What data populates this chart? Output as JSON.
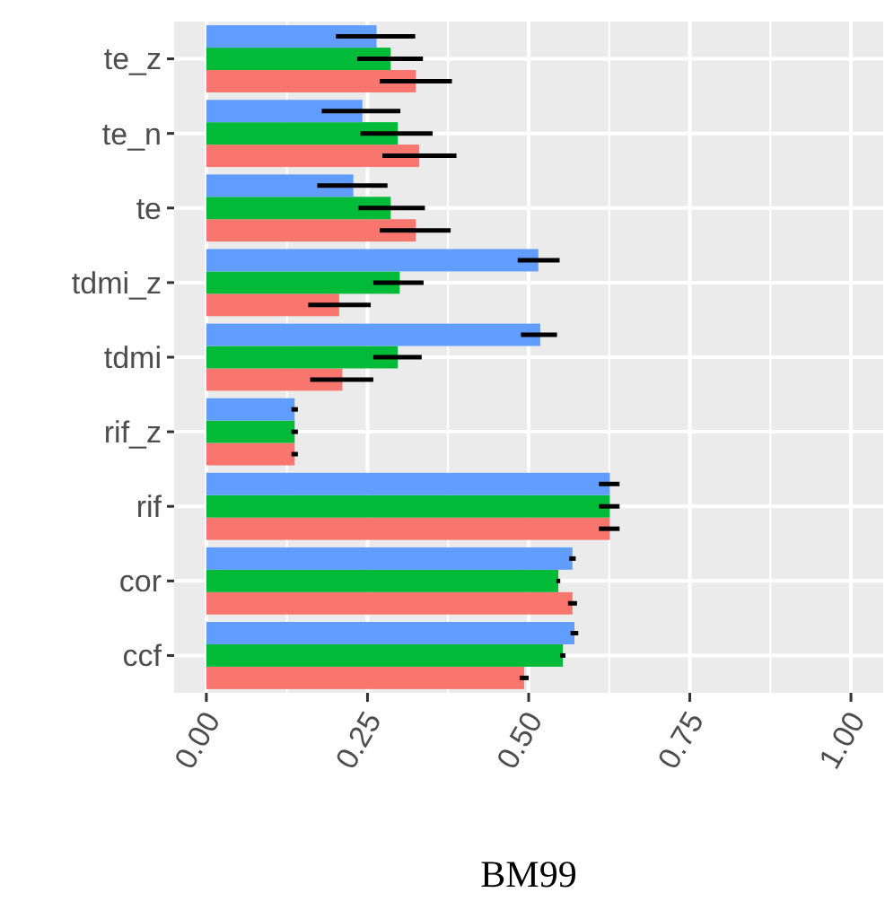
{
  "chart_data": {
    "type": "bar",
    "orientation": "horizontal",
    "xlabel": "BM99",
    "categories": [
      "te_z",
      "te_n",
      "te",
      "tdmi_z",
      "tdmi",
      "rif_z",
      "rif",
      "cor",
      "ccf"
    ],
    "series": [
      {
        "color": "#f8766d",
        "values": [
          0.325,
          0.33,
          0.325,
          0.206,
          0.211,
          0.137,
          0.626,
          0.568,
          0.493
        ],
        "errors": [
          [
            0.269,
            0.381
          ],
          [
            0.273,
            0.388
          ],
          [
            0.269,
            0.379
          ],
          [
            0.158,
            0.255
          ],
          [
            0.161,
            0.259
          ],
          [
            0.132,
            0.142
          ],
          [
            0.609,
            0.641
          ],
          [
            0.561,
            0.575
          ],
          [
            0.486,
            0.5
          ]
        ]
      },
      {
        "color": "#00ba38",
        "values": [
          0.286,
          0.297,
          0.286,
          0.3,
          0.297,
          0.137,
          0.626,
          0.546,
          0.553
        ],
        "errors": [
          [
            0.234,
            0.336
          ],
          [
            0.239,
            0.351
          ],
          [
            0.236,
            0.339
          ],
          [
            0.259,
            0.337
          ],
          [
            0.259,
            0.334
          ],
          [
            0.132,
            0.142
          ],
          [
            0.609,
            0.641
          ],
          [
            0.543,
            0.549
          ],
          [
            0.549,
            0.557
          ]
        ]
      },
      {
        "color": "#619cff",
        "values": [
          0.264,
          0.242,
          0.228,
          0.515,
          0.518,
          0.137,
          0.626,
          0.568,
          0.571
        ],
        "errors": [
          [
            0.201,
            0.324
          ],
          [
            0.179,
            0.301
          ],
          [
            0.172,
            0.281
          ],
          [
            0.483,
            0.548
          ],
          [
            0.488,
            0.544
          ],
          [
            0.132,
            0.142
          ],
          [
            0.609,
            0.641
          ],
          [
            0.563,
            0.573
          ],
          [
            0.565,
            0.577
          ]
        ]
      }
    ],
    "xlim": [
      -0.05,
      1.05
    ],
    "xticks": [
      {
        "value": 0,
        "label": "0.00"
      },
      {
        "value": 0.25,
        "label": "0.25"
      },
      {
        "value": 0.5,
        "label": "0.50"
      },
      {
        "value": 0.75,
        "label": "0.75"
      },
      {
        "value": 1,
        "label": "1.00"
      }
    ],
    "grid": true
  }
}
